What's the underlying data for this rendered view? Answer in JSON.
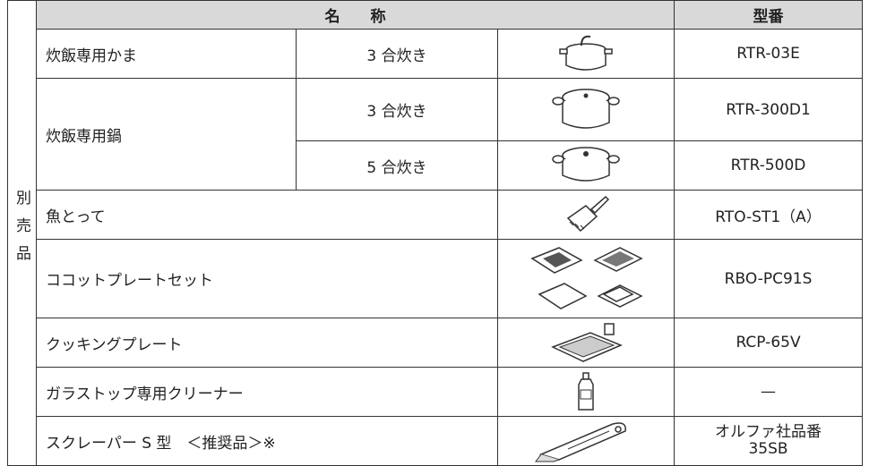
{
  "side_label": "別売品",
  "header": {
    "name": "名　　称",
    "model": "型番"
  },
  "rows": [
    {
      "name": "炊飯専用かま",
      "size": "3 合炊き",
      "model": "RTR-03E"
    },
    {
      "name": "炊飯専用鍋",
      "size": "3 合炊き",
      "model": "RTR-300D1"
    },
    {
      "size": "5 合炊き",
      "model": "RTR-500D"
    },
    {
      "name": "魚とって",
      "model": "RTO-ST1（A）"
    },
    {
      "name": "ココットプレートセット",
      "model": "RBO-PC91S"
    },
    {
      "name": "クッキングプレート",
      "model": "RCP-65V"
    },
    {
      "name": "ガラストップ専用クリーナー",
      "model": "—"
    },
    {
      "name": "スクレーパー S 型　＜推奨品＞※",
      "model_lines": [
        "オルファ社品番",
        "35SB"
      ]
    }
  ]
}
